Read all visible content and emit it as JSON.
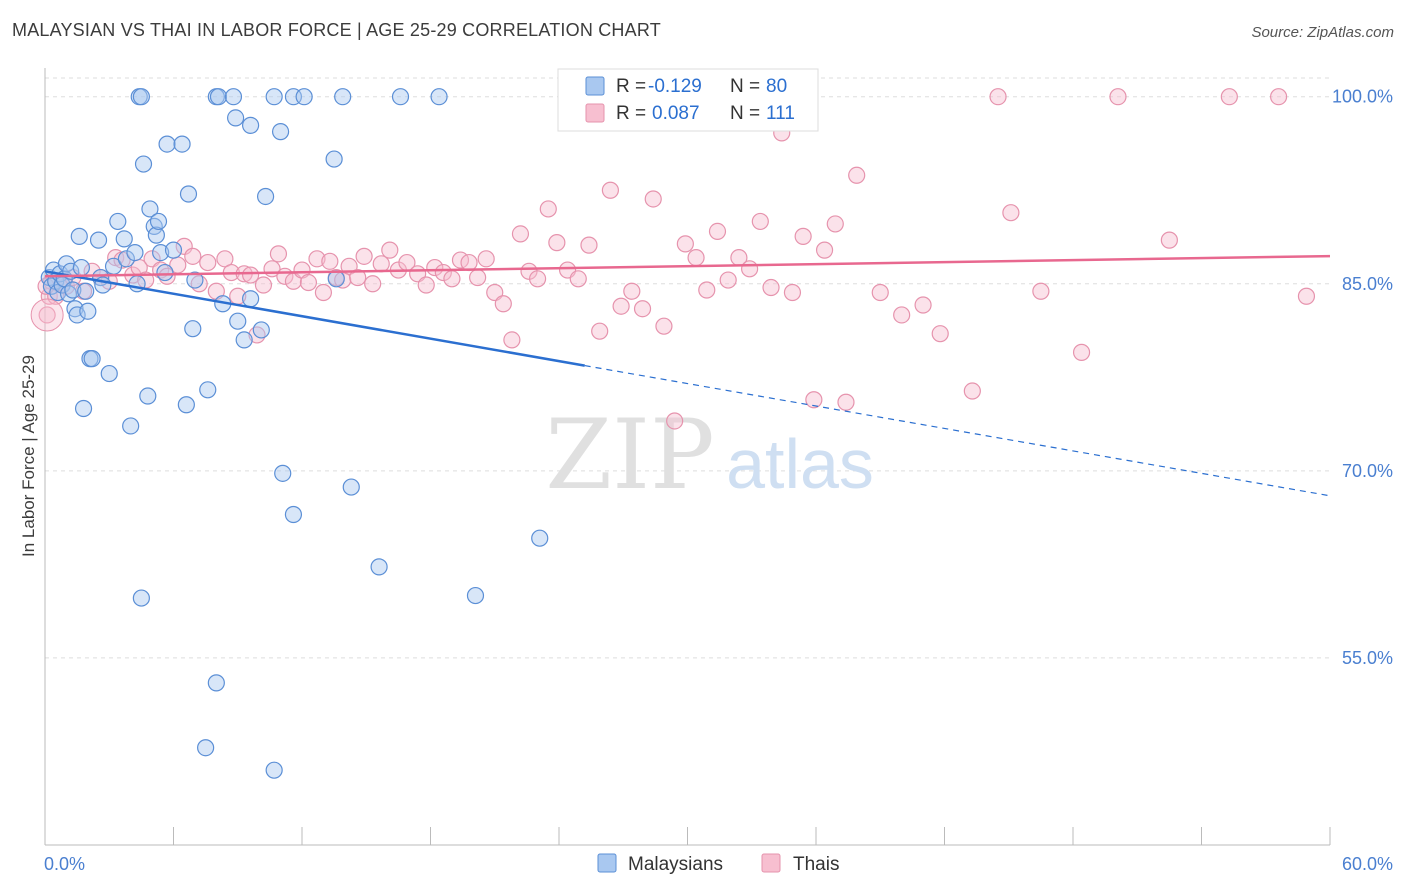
{
  "title": "MALAYSIAN VS THAI IN LABOR FORCE | AGE 25-29 CORRELATION CHART",
  "source": "Source: ZipAtlas.com",
  "watermark": {
    "zip": "ZIP",
    "atlas": "atlas"
  },
  "colors": {
    "malaysians_fill": "#a9c8f0",
    "malaysians_stroke": "#5b8fd6",
    "malaysians_line": "#2b6fd0",
    "thais_fill": "#f7bfd0",
    "thais_stroke": "#e693ad",
    "thais_line": "#e8688f",
    "axis_label_blue": "#4a7fd0",
    "grid": "#dddddd"
  },
  "chart_data": {
    "type": "scatter",
    "title": "MALAYSIAN VS THAI IN LABOR FORCE | AGE 25-29 CORRELATION CHART",
    "xlabel": "",
    "ylabel": "In Labor Force | Age 25-29",
    "xlim": [
      0,
      60
    ],
    "ylim": [
      40,
      102
    ],
    "x_tick_labels": [
      "0.0%",
      "60.0%"
    ],
    "y_ticks": [
      55,
      70,
      85,
      100
    ],
    "y_tick_labels": [
      "55.0%",
      "70.0%",
      "85.0%",
      "100.0%"
    ],
    "grid": true,
    "legend_position": "top-center",
    "legend": [
      {
        "r_label": "R =",
        "r_value": "-0.129",
        "n_label": "N =",
        "n_value": "80"
      },
      {
        "r_label": "R =",
        "r_value": "0.087",
        "n_label": "N =",
        "n_value": "111"
      }
    ],
    "bottom_legend": [
      "Malaysians",
      "Thais"
    ],
    "series": [
      {
        "name": "Malaysians",
        "trend": {
          "solid_x": [
            0,
            25.2
          ],
          "dashed_x": [
            25.2,
            60
          ],
          "y_at_0": 86.0,
          "slope": -0.3
        },
        "points": [
          [
            0.2,
            85.5
          ],
          [
            0.3,
            84.8
          ],
          [
            0.4,
            86.1
          ],
          [
            0.5,
            85.2
          ],
          [
            0.6,
            84.3
          ],
          [
            0.7,
            85.8
          ],
          [
            0.8,
            84.9
          ],
          [
            0.9,
            85.4
          ],
          [
            1.0,
            86.6
          ],
          [
            1.1,
            84.2
          ],
          [
            1.2,
            86.0
          ],
          [
            1.3,
            84.5
          ],
          [
            1.4,
            83.0
          ],
          [
            1.5,
            82.5
          ],
          [
            1.6,
            88.8
          ],
          [
            1.7,
            86.3
          ],
          [
            1.8,
            75.0
          ],
          [
            1.9,
            84.4
          ],
          [
            2.0,
            82.8
          ],
          [
            2.1,
            79.0
          ],
          [
            2.2,
            79.0
          ],
          [
            2.5,
            88.5
          ],
          [
            2.6,
            85.5
          ],
          [
            2.7,
            84.9
          ],
          [
            3.0,
            77.8
          ],
          [
            3.2,
            86.4
          ],
          [
            3.4,
            90.0
          ],
          [
            3.7,
            88.6
          ],
          [
            3.8,
            87.0
          ],
          [
            4.0,
            73.6
          ],
          [
            4.2,
            87.5
          ],
          [
            4.3,
            85.0
          ],
          [
            4.4,
            100.0
          ],
          [
            4.5,
            100.0
          ],
          [
            4.5,
            59.8
          ],
          [
            4.6,
            94.6
          ],
          [
            4.8,
            76.0
          ],
          [
            4.9,
            91.0
          ],
          [
            5.1,
            89.6
          ],
          [
            5.2,
            88.9
          ],
          [
            5.3,
            90.0
          ],
          [
            5.4,
            87.5
          ],
          [
            5.6,
            85.9
          ],
          [
            5.7,
            96.2
          ],
          [
            6.0,
            87.7
          ],
          [
            6.4,
            96.2
          ],
          [
            6.6,
            75.3
          ],
          [
            6.7,
            92.2
          ],
          [
            6.9,
            81.4
          ],
          [
            7.0,
            85.3
          ],
          [
            7.5,
            47.8
          ],
          [
            7.6,
            76.5
          ],
          [
            8.0,
            100.0
          ],
          [
            8.0,
            53.0
          ],
          [
            8.1,
            100.0
          ],
          [
            8.3,
            83.4
          ],
          [
            8.8,
            100.0
          ],
          [
            8.9,
            98.3
          ],
          [
            9.0,
            82.0
          ],
          [
            9.3,
            80.5
          ],
          [
            9.6,
            83.8
          ],
          [
            9.6,
            97.7
          ],
          [
            10.1,
            81.3
          ],
          [
            10.3,
            92.0
          ],
          [
            10.7,
            100.0
          ],
          [
            10.7,
            46.0
          ],
          [
            11.0,
            97.2
          ],
          [
            11.1,
            69.8
          ],
          [
            11.6,
            100.0
          ],
          [
            11.6,
            66.5
          ],
          [
            12.1,
            100.0
          ],
          [
            13.5,
            95.0
          ],
          [
            13.9,
            100.0
          ],
          [
            14.3,
            68.7
          ],
          [
            15.6,
            62.3
          ],
          [
            16.6,
            100.0
          ],
          [
            18.4,
            100.0
          ],
          [
            20.1,
            60.0
          ],
          [
            23.1,
            64.6
          ],
          [
            13.6,
            85.4
          ]
        ]
      },
      {
        "name": "Thais",
        "trend": {
          "x": [
            0,
            60
          ],
          "y_at_0": 85.6,
          "slope": 0.027
        },
        "points": [
          [
            0.1,
            82.5
          ],
          [
            0.2,
            84.0
          ],
          [
            0.3,
            85.2
          ],
          [
            0.5,
            84.0
          ],
          [
            0.8,
            85.0
          ],
          [
            1.0,
            84.8
          ],
          [
            1.3,
            85.5
          ],
          [
            1.8,
            84.4
          ],
          [
            2.2,
            86.0
          ],
          [
            2.6,
            85.5
          ],
          [
            3.0,
            85.2
          ],
          [
            3.3,
            87.1
          ],
          [
            3.6,
            86.9
          ],
          [
            4.1,
            85.7
          ],
          [
            4.4,
            86.3
          ],
          [
            4.7,
            85.3
          ],
          [
            5.0,
            87.0
          ],
          [
            5.4,
            86.1
          ],
          [
            5.7,
            85.6
          ],
          [
            6.2,
            86.5
          ],
          [
            6.5,
            88.0
          ],
          [
            6.9,
            87.2
          ],
          [
            7.2,
            85.0
          ],
          [
            7.6,
            86.7
          ],
          [
            8.0,
            84.4
          ],
          [
            8.4,
            87.0
          ],
          [
            8.7,
            85.9
          ],
          [
            9.0,
            84.0
          ],
          [
            9.3,
            85.8
          ],
          [
            9.6,
            85.7
          ],
          [
            9.9,
            80.9
          ],
          [
            10.2,
            84.9
          ],
          [
            10.6,
            86.2
          ],
          [
            10.9,
            87.4
          ],
          [
            11.2,
            85.6
          ],
          [
            11.6,
            85.2
          ],
          [
            12.0,
            86.1
          ],
          [
            12.3,
            85.1
          ],
          [
            12.7,
            87.0
          ],
          [
            13.0,
            84.3
          ],
          [
            13.3,
            86.8
          ],
          [
            13.6,
            85.5
          ],
          [
            13.9,
            85.3
          ],
          [
            14.2,
            86.4
          ],
          [
            14.6,
            85.5
          ],
          [
            14.9,
            87.2
          ],
          [
            15.3,
            85.0
          ],
          [
            15.7,
            86.6
          ],
          [
            16.1,
            87.7
          ],
          [
            16.5,
            86.1
          ],
          [
            16.9,
            86.7
          ],
          [
            17.4,
            85.8
          ],
          [
            17.8,
            84.9
          ],
          [
            18.2,
            86.3
          ],
          [
            18.6,
            85.9
          ],
          [
            19.0,
            85.4
          ],
          [
            19.4,
            86.9
          ],
          [
            19.8,
            86.7
          ],
          [
            20.2,
            85.5
          ],
          [
            20.6,
            87.0
          ],
          [
            21.0,
            84.3
          ],
          [
            21.4,
            83.4
          ],
          [
            21.8,
            80.5
          ],
          [
            22.2,
            89.0
          ],
          [
            22.6,
            86.0
          ],
          [
            23.0,
            85.4
          ],
          [
            23.5,
            91.0
          ],
          [
            23.9,
            88.3
          ],
          [
            24.4,
            86.1
          ],
          [
            24.9,
            85.4
          ],
          [
            25.4,
            88.1
          ],
          [
            25.9,
            81.2
          ],
          [
            26.4,
            92.5
          ],
          [
            26.9,
            83.2
          ],
          [
            27.4,
            84.4
          ],
          [
            27.9,
            83.0
          ],
          [
            28.4,
            91.8
          ],
          [
            28.9,
            81.6
          ],
          [
            29.4,
            74.0
          ],
          [
            29.9,
            88.2
          ],
          [
            30.4,
            87.1
          ],
          [
            30.9,
            84.5
          ],
          [
            31.4,
            89.2
          ],
          [
            31.9,
            85.3
          ],
          [
            32.4,
            87.1
          ],
          [
            32.9,
            86.2
          ],
          [
            33.4,
            90.0
          ],
          [
            33.9,
            84.7
          ],
          [
            34.4,
            97.1
          ],
          [
            34.9,
            84.3
          ],
          [
            35.4,
            88.8
          ],
          [
            35.9,
            75.7
          ],
          [
            36.4,
            87.7
          ],
          [
            36.9,
            89.8
          ],
          [
            37.4,
            75.5
          ],
          [
            37.9,
            93.7
          ],
          [
            39.0,
            84.3
          ],
          [
            40.0,
            82.5
          ],
          [
            41.0,
            83.3
          ],
          [
            41.8,
            81.0
          ],
          [
            43.3,
            76.4
          ],
          [
            44.5,
            100.0
          ],
          [
            45.1,
            90.7
          ],
          [
            46.5,
            84.4
          ],
          [
            48.4,
            79.5
          ],
          [
            50.1,
            100.0
          ],
          [
            52.5,
            88.5
          ],
          [
            55.3,
            100.0
          ],
          [
            57.6,
            100.0
          ],
          [
            58.9,
            84.0
          ],
          [
            0.05,
            84.8
          ]
        ]
      }
    ]
  }
}
